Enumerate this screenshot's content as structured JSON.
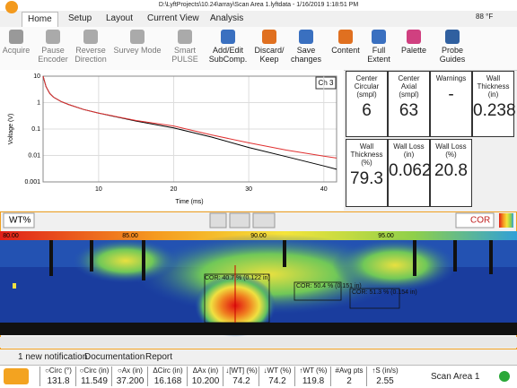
{
  "title_bar": "D:\\LyftProjects\\10.24\\array\\Scan Area 1.lyftdata - 1/16/2019 1:18:51 PM",
  "temperature": "88 °F",
  "tabs": [
    "Home",
    "Setup",
    "Layout",
    "Current View",
    "Analysis"
  ],
  "ribbon": [
    [
      "Acquire"
    ],
    [
      "Pause",
      "Encoder"
    ],
    [
      "Reverse",
      "Direction"
    ],
    [
      "Survey Mode"
    ],
    [
      "Smart",
      "PULSE"
    ],
    [
      "Add/Edit",
      "SubComp."
    ],
    [
      "Discard/",
      "Keep"
    ],
    [
      "Save",
      "changes"
    ],
    [
      "Content"
    ],
    [
      "Full",
      "Extent"
    ],
    [
      "Palette"
    ],
    [
      "Probe",
      "Guides"
    ]
  ],
  "plot": {
    "type": "line",
    "x_label": "Time (ms)",
    "y_label": "Voltage (V)",
    "channel": "Ch 3",
    "log_y": true,
    "grid": true,
    "xlim": [
      2.6,
      41.7
    ],
    "xticks": [
      10,
      20,
      30,
      40
    ],
    "ylim": [
      0.001,
      10
    ],
    "yticks": [
      0.001,
      0.01,
      0.1,
      1,
      10
    ],
    "x": [
      2.6,
      3,
      3.5,
      4,
      5,
      6,
      8,
      10,
      15,
      20,
      25,
      30,
      35,
      40,
      41.7
    ],
    "series": [
      {
        "color": "#000000",
        "values": [
          10,
          4,
          2.2,
          1.6,
          1.1,
          0.85,
          0.55,
          0.4,
          0.2,
          0.11,
          0.05,
          0.02,
          0.009,
          0.004,
          0.003
        ]
      },
      {
        "color": "#e03030",
        "values": [
          10,
          4,
          2.2,
          1.6,
          1.1,
          0.85,
          0.55,
          0.4,
          0.21,
          0.13,
          0.06,
          0.03,
          0.016,
          0.0095,
          0.008
        ]
      }
    ]
  },
  "readouts": [
    {
      "label": [
        "Center",
        "Circular",
        "(smpl)"
      ],
      "value": "6"
    },
    {
      "label": [
        "Center",
        "Axial",
        "(smpl)"
      ],
      "value": "63"
    },
    {
      "label": [
        "Warnings"
      ],
      "value": "-"
    },
    {
      "label": [
        "Wall",
        "Thickness",
        "(in)"
      ],
      "value": "0.238"
    },
    {
      "label": [
        "Wall",
        "Thickness",
        "(%)"
      ],
      "value": "79.3"
    },
    {
      "label": [
        "Wall Loss",
        "(in)"
      ],
      "value": "0.062"
    },
    {
      "label": [
        "Wall Loss",
        "(%)"
      ],
      "value": "20.8"
    }
  ],
  "scan": {
    "view": "WT%",
    "mode": "COR",
    "scale_labels": [
      "80.00",
      "85.00",
      "90.00",
      "95.00"
    ],
    "annotations": [
      "COR: 40.7 % (0.122 in)",
      "COR: 50.4 % (0.151 in)",
      "COR: 51.3 % (0.154 in)"
    ]
  },
  "status": [
    "1 new notification",
    "Documentation",
    "Report"
  ],
  "bottom": {
    "headers": [
      "○Circ (°)",
      "○Circ (in)",
      "○Ax (in)",
      "ΔCirc (in)",
      "ΔAx (in)",
      "↓[WT] (%)",
      "↓WT (%)",
      "↑WT (%)",
      "#Avg pts",
      "↑S (in/s)"
    ],
    "values": [
      "131.8",
      "11.549",
      "37.200",
      "16.168",
      "10.200",
      "74.2",
      "74.2",
      "119.8",
      "2",
      "2.55"
    ],
    "area": "Scan Area 1"
  }
}
